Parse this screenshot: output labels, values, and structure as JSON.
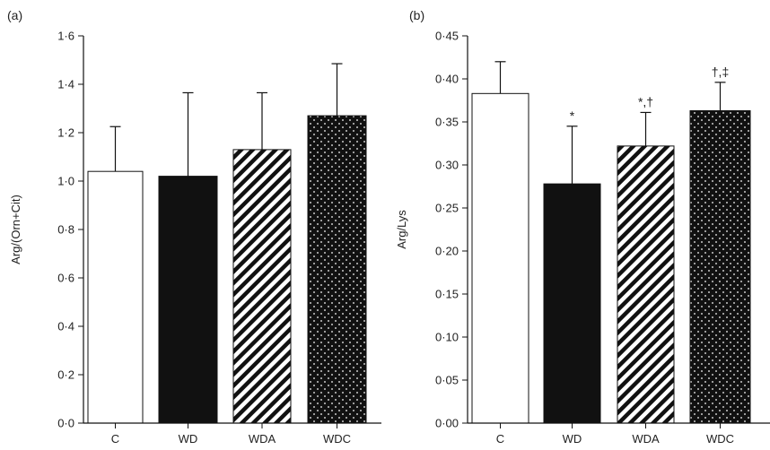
{
  "chart_data": [
    {
      "type": "bar",
      "panel_label": "(a)",
      "categories": [
        "C",
        "WD",
        "WDA",
        "WDC"
      ],
      "values": [
        1.04,
        1.02,
        1.13,
        1.27
      ],
      "errors": [
        0.185,
        0.345,
        0.235,
        0.215
      ],
      "annotations": [
        "",
        "",
        "",
        ""
      ],
      "ylabel": "Arg/(Orn+Cit)",
      "ylim": [
        0,
        1.6
      ],
      "yticks": [
        0,
        0.2,
        0.4,
        0.6,
        0.8,
        1.0,
        1.2,
        1.4,
        1.6
      ],
      "ytick_labels": [
        "0·0",
        "0·2",
        "0·4",
        "0·6",
        "0·8",
        "1·0",
        "1·2",
        "1·4",
        "1·6"
      ],
      "fills": [
        "white",
        "black",
        "diagonal-stripes",
        "dots"
      ],
      "grid": false
    },
    {
      "type": "bar",
      "panel_label": "(b)",
      "categories": [
        "C",
        "WD",
        "WDA",
        "WDC"
      ],
      "values": [
        0.383,
        0.278,
        0.322,
        0.363
      ],
      "errors": [
        0.037,
        0.067,
        0.039,
        0.033
      ],
      "annotations": [
        "",
        "*",
        "*,†",
        "†,‡"
      ],
      "ylabel": "Arg/Lys",
      "ylim": [
        0,
        0.45
      ],
      "yticks": [
        0,
        0.05,
        0.1,
        0.15,
        0.2,
        0.25,
        0.3,
        0.35,
        0.4,
        0.45
      ],
      "ytick_labels": [
        "0·00",
        "0·05",
        "0·10",
        "0·15",
        "0·20",
        "0·25",
        "0·30",
        "0·35",
        "0·40",
        "0·45"
      ],
      "fills": [
        "white",
        "black",
        "diagonal-stripes",
        "dots"
      ],
      "grid": false
    }
  ]
}
